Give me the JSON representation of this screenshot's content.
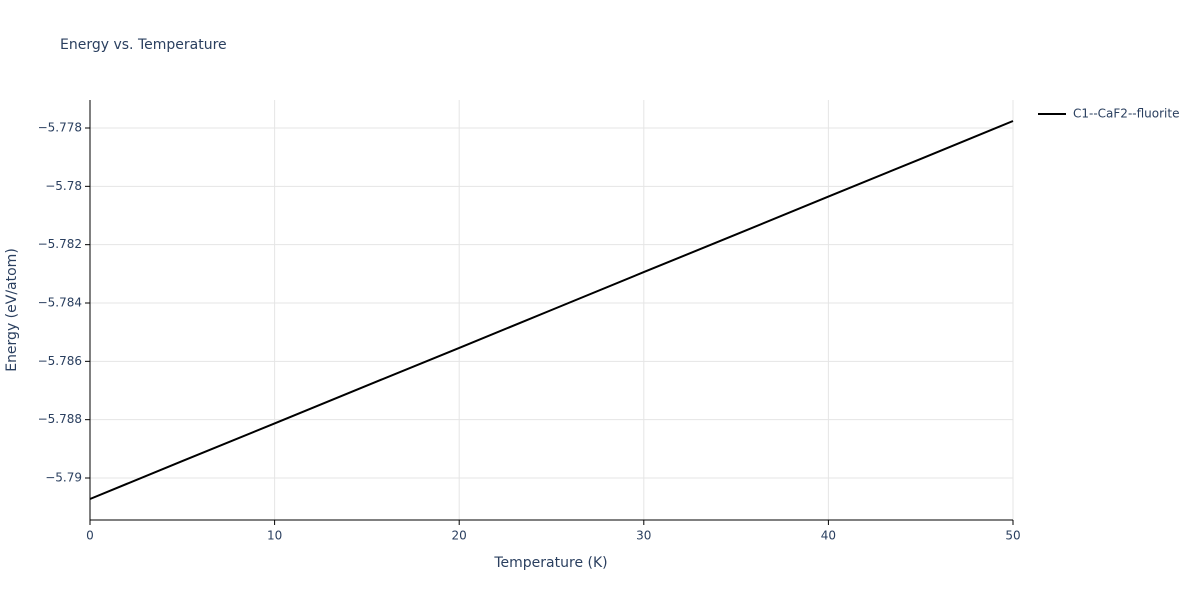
{
  "chart_data": {
    "type": "line",
    "title": "Energy vs. Temperature",
    "xlabel": "Temperature (K)",
    "ylabel": "Energy (eV/atom)",
    "x": [
      0,
      5,
      10,
      15,
      20,
      25,
      30,
      35,
      40,
      45,
      50
    ],
    "series": [
      {
        "name": "C1--CaF2--fluorite",
        "color": "#000000",
        "values": [
          -5.79072,
          -5.78942,
          -5.78813,
          -5.78683,
          -5.78554,
          -5.78424,
          -5.78294,
          -5.78165,
          -5.78035,
          -5.77906,
          -5.77776
        ]
      }
    ],
    "xlim": [
      0,
      50
    ],
    "xticks": [
      0,
      10,
      20,
      30,
      40,
      50
    ],
    "ylim": [
      -5.79144,
      -5.77704
    ],
    "yticks": [
      {
        "value": -5.79,
        "label": "−5.79"
      },
      {
        "value": -5.788,
        "label": "−5.788"
      },
      {
        "value": -5.786,
        "label": "−5.786"
      },
      {
        "value": -5.784,
        "label": "−5.784"
      },
      {
        "value": -5.782,
        "label": "−5.782"
      },
      {
        "value": -5.78,
        "label": "−5.78"
      },
      {
        "value": -5.778,
        "label": "−5.778"
      }
    ],
    "grid": true,
    "legend": "right"
  }
}
